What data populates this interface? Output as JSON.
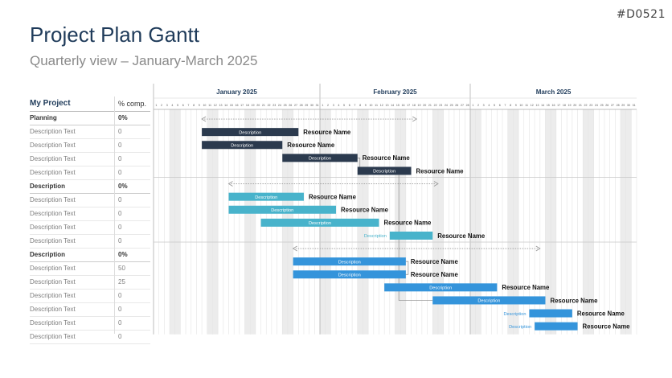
{
  "code": "#D0521",
  "title": "Project Plan Gantt",
  "subtitle": "Quarterly view – January-March 2025",
  "header": {
    "project": "My Project",
    "pct": "% comp."
  },
  "months": [
    {
      "name": "January 2025",
      "days": 31
    },
    {
      "name": "February 2025",
      "days": 28
    },
    {
      "name": "March 2025",
      "days": 31
    }
  ],
  "rows": [
    {
      "name": "Planning",
      "pct": "0%",
      "group": true
    },
    {
      "name": "Description Text",
      "pct": "0"
    },
    {
      "name": "Description Text",
      "pct": "0"
    },
    {
      "name": "Description Text",
      "pct": "0"
    },
    {
      "name": "Description Text",
      "pct": "0"
    },
    {
      "name": "Description",
      "pct": "0%",
      "group": true
    },
    {
      "name": "Description Text",
      "pct": "0"
    },
    {
      "name": "Description Text",
      "pct": "0"
    },
    {
      "name": "Description Text",
      "pct": "0"
    },
    {
      "name": "Description Text",
      "pct": "0"
    },
    {
      "name": "Description",
      "pct": "0%",
      "group": true
    },
    {
      "name": "Description Text",
      "pct": "50"
    },
    {
      "name": "Description Text",
      "pct": "25"
    },
    {
      "name": "Description Text",
      "pct": "0"
    },
    {
      "name": "Description Text",
      "pct": "0"
    },
    {
      "name": "Description Text",
      "pct": "0"
    },
    {
      "name": "Description Text",
      "pct": "0"
    }
  ],
  "chart_data": {
    "type": "gantt",
    "colors": {
      "navy": "#2b3a4e",
      "teal": "#48b3cb",
      "blue": "#3494db",
      "weekend": "#ececec",
      "arrow": "#999999"
    },
    "spans": [
      {
        "row": 0,
        "start": 9,
        "end": 49
      },
      {
        "row": 5,
        "start": 14,
        "end": 53
      },
      {
        "row": 10,
        "start": 26,
        "end": 72
      }
    ],
    "tasks": [
      {
        "row": 1,
        "start": 9,
        "end": 27,
        "label": "Description",
        "resource": "Resource Name",
        "color": "navy"
      },
      {
        "row": 2,
        "start": 9,
        "end": 24,
        "label": "Description",
        "resource": "Resource Name",
        "color": "navy"
      },
      {
        "row": 3,
        "start": 24,
        "end": 38,
        "label": "Description",
        "resource": "Resource Name",
        "color": "navy"
      },
      {
        "row": 4,
        "start": 38,
        "end": 48,
        "label": "Description",
        "resource": "Resource Name",
        "color": "navy"
      },
      {
        "row": 6,
        "start": 14,
        "end": 28,
        "label": "Description",
        "resource": "Resource Name",
        "color": "teal"
      },
      {
        "row": 7,
        "start": 14,
        "end": 34,
        "label": "Description",
        "resource": "Resource Name",
        "color": "teal"
      },
      {
        "row": 8,
        "start": 20,
        "end": 42,
        "label": "Description",
        "resource": "Resource Name",
        "color": "teal"
      },
      {
        "row": 9,
        "start": 44,
        "end": 52,
        "label": "Description",
        "resource": "Resource Name",
        "color": "teal",
        "labelOutside": true
      },
      {
        "row": 11,
        "start": 26,
        "end": 47,
        "label": "Description",
        "resource": "Resource Name",
        "color": "blue"
      },
      {
        "row": 12,
        "start": 26,
        "end": 47,
        "label": "Description",
        "resource": "Resource Name",
        "color": "blue"
      },
      {
        "row": 13,
        "start": 43,
        "end": 64,
        "label": "Description",
        "resource": "Resource Name",
        "color": "blue"
      },
      {
        "row": 14,
        "start": 52,
        "end": 73,
        "label": "Description",
        "resource": "Resource Name",
        "color": "blue"
      },
      {
        "row": 15,
        "start": 70,
        "end": 78,
        "label": "Description",
        "resource": "Resource Name",
        "color": "blue",
        "labelOutside": true
      },
      {
        "row": 16,
        "start": 71,
        "end": 79,
        "label": "Description",
        "resource": "Resource Name",
        "color": "blue",
        "labelOutside": true
      }
    ],
    "dependencies": [
      {
        "from": 2,
        "to": 3
      },
      {
        "from": 8,
        "to": 9
      },
      {
        "from": 3,
        "to": 11
      }
    ]
  }
}
